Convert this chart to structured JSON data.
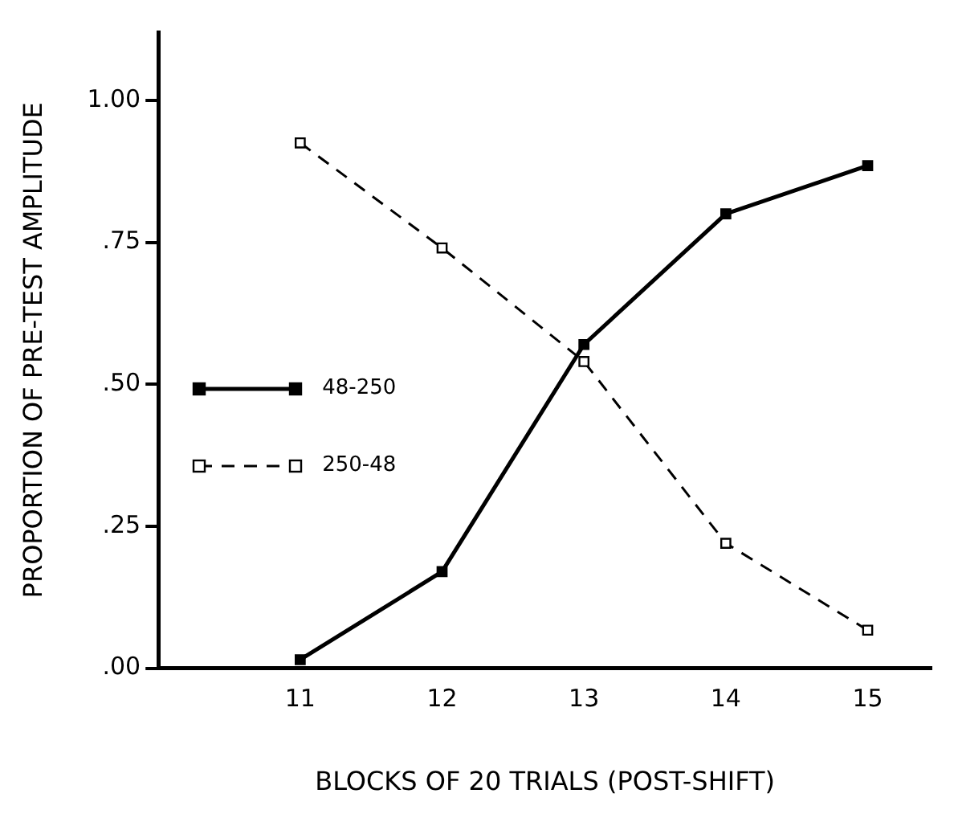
{
  "chart_data": {
    "type": "line",
    "xlabel": "BLOCKS OF 20 TRIALS (POST-SHIFT)",
    "ylabel": "PROPORTION OF PRE-TEST AMPLITUDE",
    "x": [
      11,
      12,
      13,
      14,
      15
    ],
    "series": [
      {
        "name": "48-250",
        "color": "#000000",
        "values": [
          0.015,
          0.17,
          0.57,
          0.8,
          0.885
        ],
        "line_style": "solid",
        "marker": "square"
      },
      {
        "name": "250-48",
        "color": "#000000",
        "values": [
          0.925,
          0.74,
          0.54,
          0.22,
          0.067
        ],
        "line_style": "dashed",
        "marker": "square"
      }
    ],
    "xlim": [
      10,
      15.45
    ],
    "xticks": [
      11,
      12,
      13,
      14,
      15
    ],
    "ylim": [
      0,
      1.12
    ],
    "yticks": [
      {
        "value": 0,
        "label": ".00"
      },
      {
        "value": 0.25,
        "label": ".25"
      },
      {
        "value": 0.5,
        "label": ".50"
      },
      {
        "value": 0.75,
        "label": ".75"
      },
      {
        "value": 1,
        "label": "1.00"
      }
    ],
    "grid": false,
    "legend": "left"
  }
}
